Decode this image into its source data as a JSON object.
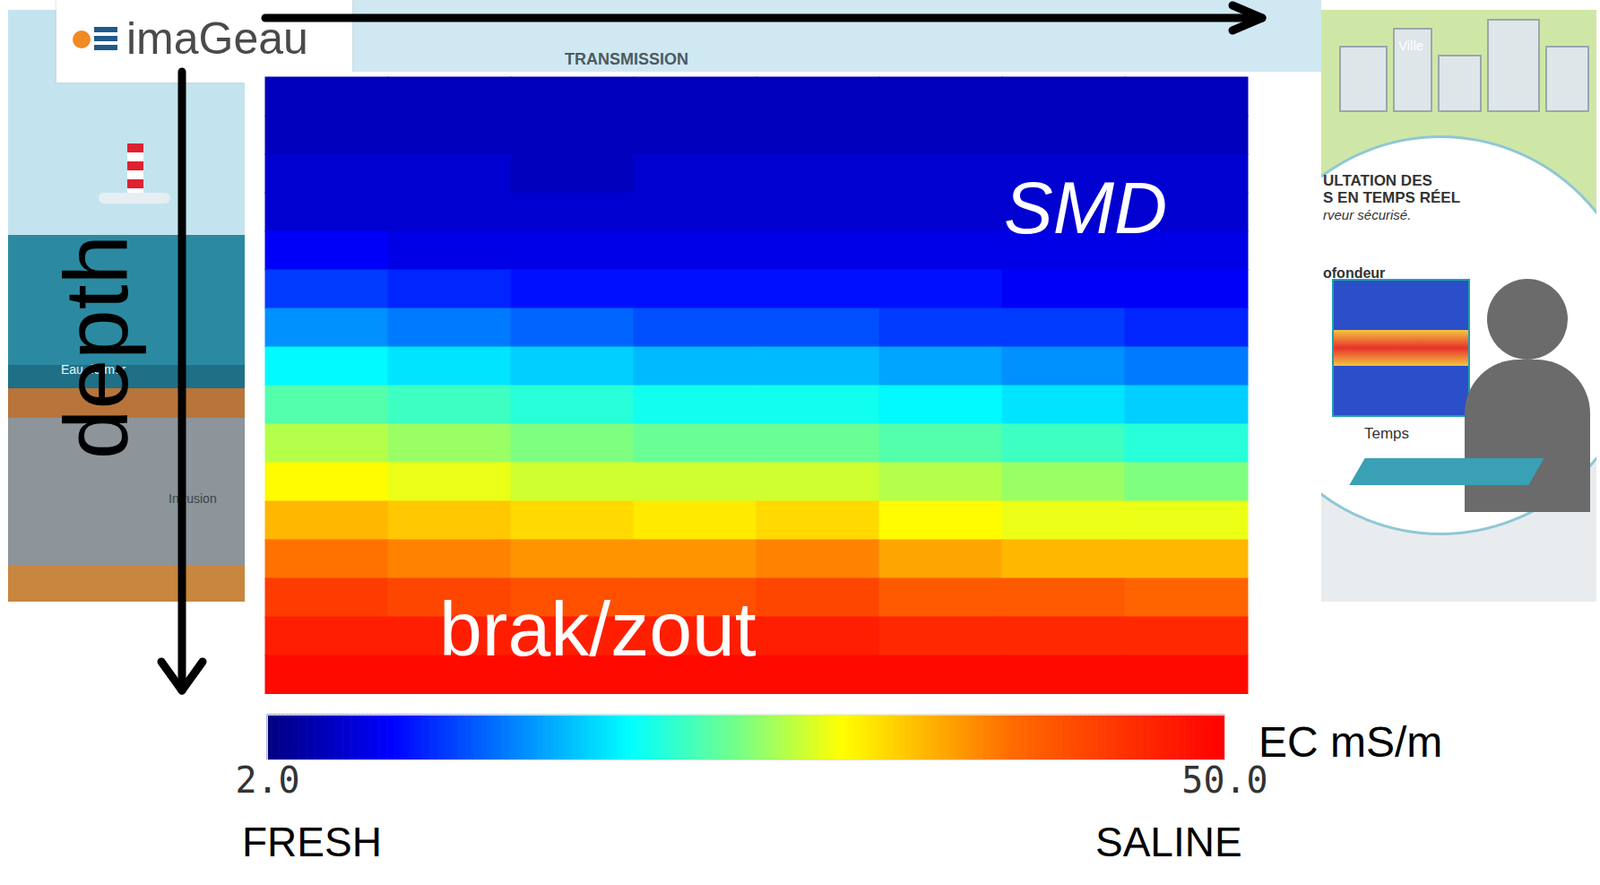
{
  "chart_data": {
    "type": "heatmap",
    "y_label": "depth",
    "tick_labels": false,
    "annotations": [
      "SMD",
      "brak/zout"
    ],
    "cells": [
      [
        5,
        5,
        5,
        5,
        5,
        5,
        5,
        5
      ],
      [
        5,
        5,
        5,
        5,
        5,
        5,
        5,
        5
      ],
      [
        6,
        6,
        5,
        6,
        6,
        6,
        6,
        6
      ],
      [
        6,
        6,
        6,
        6,
        6,
        6,
        6,
        6
      ],
      [
        8,
        7,
        7,
        7,
        7,
        7,
        7,
        7
      ],
      [
        11,
        10,
        9,
        9,
        9,
        9,
        8,
        8
      ],
      [
        15,
        14,
        13,
        12,
        12,
        11,
        11,
        10
      ],
      [
        20,
        19,
        18,
        17,
        17,
        16,
        15,
        14
      ],
      [
        24,
        23,
        22,
        21,
        21,
        20,
        19,
        18
      ],
      [
        28,
        27,
        26,
        25,
        25,
        24,
        23,
        22
      ],
      [
        31,
        30,
        29,
        29,
        29,
        28,
        27,
        26
      ],
      [
        35,
        34,
        33,
        32,
        33,
        31,
        30,
        30
      ],
      [
        39,
        38,
        37,
        37,
        38,
        36,
        35,
        35
      ],
      [
        44,
        43,
        42,
        42,
        43,
        41,
        41,
        40
      ],
      [
        47,
        47,
        47,
        47,
        47,
        46,
        46,
        46
      ],
      [
        49,
        49,
        49,
        49,
        49,
        49,
        49,
        49
      ]
    ],
    "colorbar": {
      "label": "EC mS/m",
      "range": [
        2,
        50
      ],
      "ticks": [
        {
          "value": 2,
          "label": "2.0"
        },
        {
          "value": 50,
          "label": "50.0"
        }
      ],
      "end_labels": [
        "FRESH",
        "SALINE"
      ]
    }
  },
  "background": {
    "logo": "imaGeau",
    "texts": [
      "TRANSMISSION",
      "Eau de mer",
      "Intrusion",
      "Ville",
      "ULTATION DES",
      "S EN TEMPS RÉEL",
      "rveur sécurisé.",
      "ofondeur",
      "Temps"
    ]
  }
}
